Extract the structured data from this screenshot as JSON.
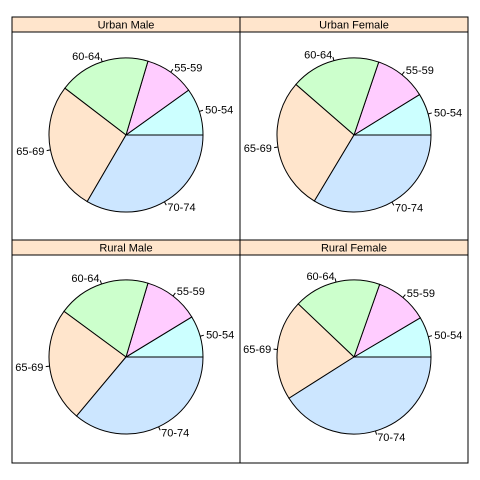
{
  "chart_data": [
    {
      "type": "pie",
      "title": "Urban Male",
      "categories": [
        "50-54",
        "55-59",
        "60-64",
        "65-69",
        "70-74"
      ],
      "values": [
        9.9,
        10.5,
        19.2,
        27.0,
        33.4
      ]
    },
    {
      "type": "pie",
      "title": "Urban Female",
      "categories": [
        "50-54",
        "55-59",
        "60-64",
        "65-69",
        "70-74"
      ],
      "values": [
        8.8,
        11.0,
        18.8,
        27.8,
        33.6
      ]
    },
    {
      "type": "pie",
      "title": "Rural Male",
      "categories": [
        "50-54",
        "55-59",
        "60-64",
        "65-69",
        "70-74"
      ],
      "values": [
        8.7,
        11.7,
        19.5,
        24.0,
        36.1
      ]
    },
    {
      "type": "pie",
      "title": "Rural Female",
      "categories": [
        "50-54",
        "55-59",
        "60-64",
        "65-69",
        "70-74"
      ],
      "values": [
        8.5,
        11.1,
        18.3,
        21.1,
        41.0
      ]
    }
  ],
  "colors": {
    "strip": "#ffe5cc",
    "slices": [
      "#ccffff",
      "#ffccff",
      "#ccffcc",
      "#ffe5cc",
      "#cce6ff"
    ],
    "outline": "#000000"
  }
}
